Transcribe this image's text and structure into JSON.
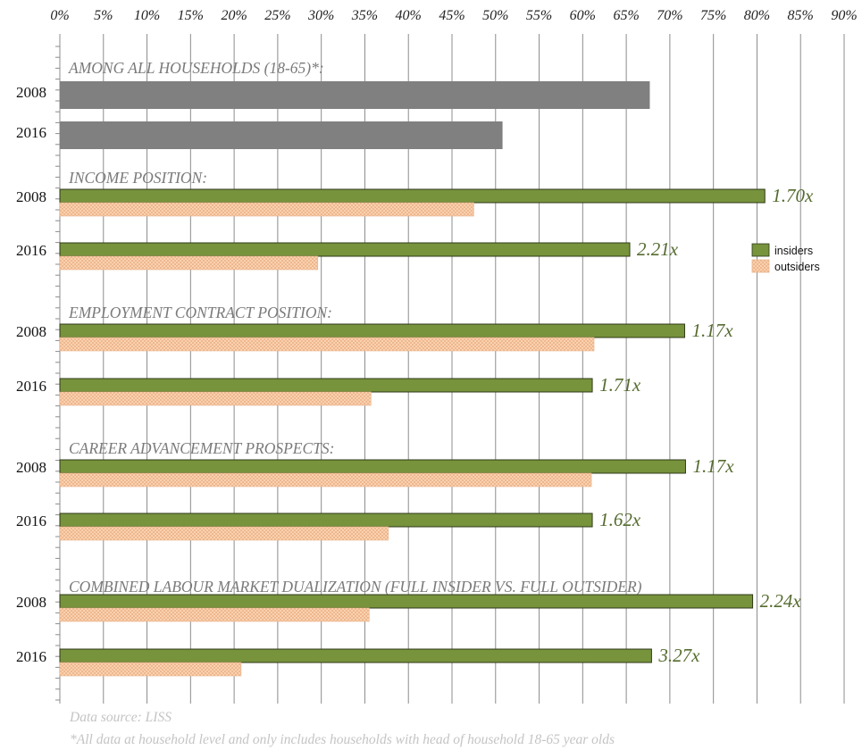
{
  "chart_data": {
    "type": "bar",
    "orientation": "horizontal",
    "xlim": [
      0,
      90
    ],
    "x_ticks": [
      "0%",
      "5%",
      "10%",
      "15%",
      "20%",
      "25%",
      "30%",
      "35%",
      "40%",
      "45%",
      "50%",
      "55%",
      "60%",
      "65%",
      "70%",
      "75%",
      "80%",
      "85%",
      "90%"
    ],
    "grid": true,
    "legend": {
      "placement": "right",
      "entries": [
        {
          "name": "insiders",
          "color": "#77933c"
        },
        {
          "name": "outsiders",
          "color": "#fcd5b4"
        }
      ]
    },
    "groups": [
      {
        "label": "AMONG ALL HOUSEHOLDS (18-65)*:",
        "rows": [
          {
            "year": "2008",
            "total": 67.7
          },
          {
            "year": "2016",
            "total": 50.8
          }
        ]
      },
      {
        "label": "INCOME POSITION:",
        "rows": [
          {
            "year": "2008",
            "insiders": 80.9,
            "outsiders": 47.5,
            "ratio": "1.70x"
          },
          {
            "year": "2016",
            "insiders": 65.4,
            "outsiders": 29.6,
            "ratio": "2.21x"
          }
        ]
      },
      {
        "label": "EMPLOYMENT CONTRACT POSITION:",
        "rows": [
          {
            "year": "2008",
            "insiders": 71.7,
            "outsiders": 61.3,
            "ratio": "1.17x"
          },
          {
            "year": "2016",
            "insiders": 61.1,
            "outsiders": 35.7,
            "ratio": "1.71x"
          }
        ]
      },
      {
        "label": "CAREER ADVANCEMENT PROSPECTS:",
        "rows": [
          {
            "year": "2008",
            "insiders": 71.8,
            "outsiders": 61.0,
            "ratio": "1.17x"
          },
          {
            "year": "2016",
            "insiders": 61.1,
            "outsiders": 37.7,
            "ratio": "1.62x"
          }
        ]
      },
      {
        "label": "COMBINED LABOUR MARKET DUALIZATION (FULL INSIDER VS. FULL OUTSIDER)",
        "rows": [
          {
            "year": "2008",
            "insiders": 79.5,
            "outsiders": 35.5,
            "ratio": "2.24x"
          },
          {
            "year": "2016",
            "insiders": 67.9,
            "outsiders": 20.8,
            "ratio": "3.27x"
          }
        ]
      }
    ],
    "colors": {
      "total": "#808080",
      "insiders": "#77933c",
      "outsiders": "#fcd5b4",
      "ratio_text": "#556b2f"
    }
  },
  "notes": {
    "source": "Data source: LISS",
    "footnote": "*All data at household level and only includes households with head of household 18-65 year olds"
  }
}
